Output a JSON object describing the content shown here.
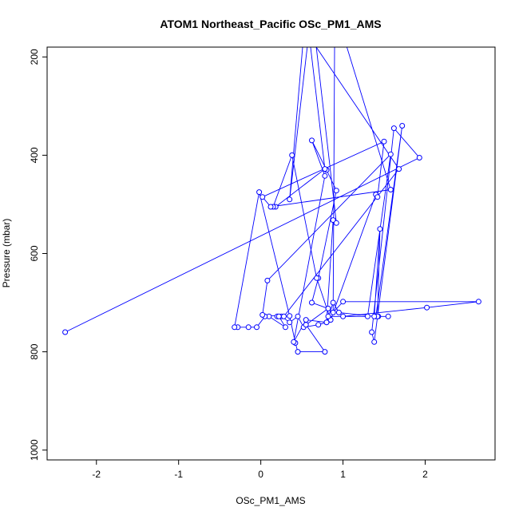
{
  "chart_data": {
    "type": "line",
    "title": "ATOM1 Northeast_Pacific OSc_PM1_AMS",
    "xlabel": "OSc_PM1_AMS",
    "ylabel": "Pressure (mbar)",
    "xlim": [
      -2.6,
      2.85
    ],
    "ylim": [
      1020,
      180
    ],
    "y_reversed": true,
    "x_ticks": [
      -2,
      -1,
      0,
      1,
      2
    ],
    "x_tick_labels": [
      "-2",
      "-1",
      "0",
      "1",
      "2"
    ],
    "y_ticks": [
      200,
      400,
      600,
      800,
      1000
    ],
    "y_tick_labels": [
      "200",
      "400",
      "600",
      "800",
      "1000"
    ],
    "grid": false,
    "series": [
      {
        "color": "#0000ff",
        "marker": "open-circle",
        "points": [
          [
            -2.38,
            760
          ],
          [
            1.93,
            405
          ],
          [
            1.62,
            345
          ],
          [
            1.35,
            760
          ],
          [
            1.38,
            780
          ],
          [
            1.72,
            340
          ],
          [
            1.4,
            728
          ],
          [
            1.55,
            728
          ],
          [
            1.43,
            728
          ],
          [
            1.42,
            728
          ],
          [
            1.45,
            550
          ],
          [
            1.38,
            728
          ],
          [
            0.95,
            720
          ],
          [
            0.88,
            700
          ],
          [
            0.8,
            740
          ],
          [
            0.7,
            745
          ],
          [
            0.52,
            750
          ],
          [
            0.45,
            728
          ],
          [
            0.35,
            740
          ],
          [
            0.25,
            728
          ],
          [
            0.2,
            728
          ],
          [
            0.22,
            728
          ],
          [
            0.3,
            750
          ],
          [
            0.1,
            728
          ],
          [
            0.05,
            728
          ],
          [
            -0.05,
            750
          ],
          [
            -0.15,
            750
          ],
          [
            -0.28,
            750
          ],
          [
            -0.32,
            750
          ],
          [
            -0.02,
            475
          ],
          [
            0.35,
            727
          ],
          [
            0.42,
            782
          ],
          [
            0.45,
            800
          ],
          [
            0.78,
            800
          ],
          [
            0.55,
            745
          ],
          [
            0.82,
            712
          ],
          [
            0.62,
            700
          ],
          [
            0.7,
            650
          ],
          [
            0.92,
            472
          ],
          [
            0.8,
            430
          ],
          [
            0.62,
            370
          ],
          [
            0.78,
            442
          ],
          [
            0.4,
            780
          ],
          [
            0.55,
            735
          ],
          [
            0.8,
            740
          ],
          [
            0.88,
            532
          ],
          [
            0.92,
            538
          ],
          [
            0.62,
            100
          ],
          [
            0.35,
            490
          ],
          [
            0.55,
            100
          ],
          [
            0.78,
            428
          ],
          [
            0.18,
            505
          ],
          [
            0.15,
            505
          ],
          [
            0.38,
            400
          ],
          [
            0.68,
            650
          ],
          [
            0.85,
            735
          ],
          [
            1.4,
            480
          ],
          [
            1.42,
            485
          ],
          [
            1.5,
            372
          ],
          [
            0.02,
            485
          ],
          [
            0.12,
            505
          ],
          [
            1.58,
            470
          ],
          [
            0.9,
            100
          ],
          [
            0.88,
            720
          ],
          [
            1.0,
            698
          ],
          [
            2.65,
            698
          ],
          [
            2.02,
            710
          ],
          [
            1.0,
            728
          ],
          [
            0.82,
            728
          ],
          [
            1.3,
            728
          ],
          [
            1.58,
            398
          ],
          [
            0.08,
            655
          ],
          [
            0.02,
            725
          ],
          [
            0.28,
            728
          ],
          [
            1.68,
            428
          ],
          [
            0.35,
            100
          ],
          [
            1.95,
            100
          ],
          [
            1.0,
            100
          ],
          [
            1.6,
            100
          ],
          [
            1.5,
            100
          ]
        ]
      }
    ]
  }
}
